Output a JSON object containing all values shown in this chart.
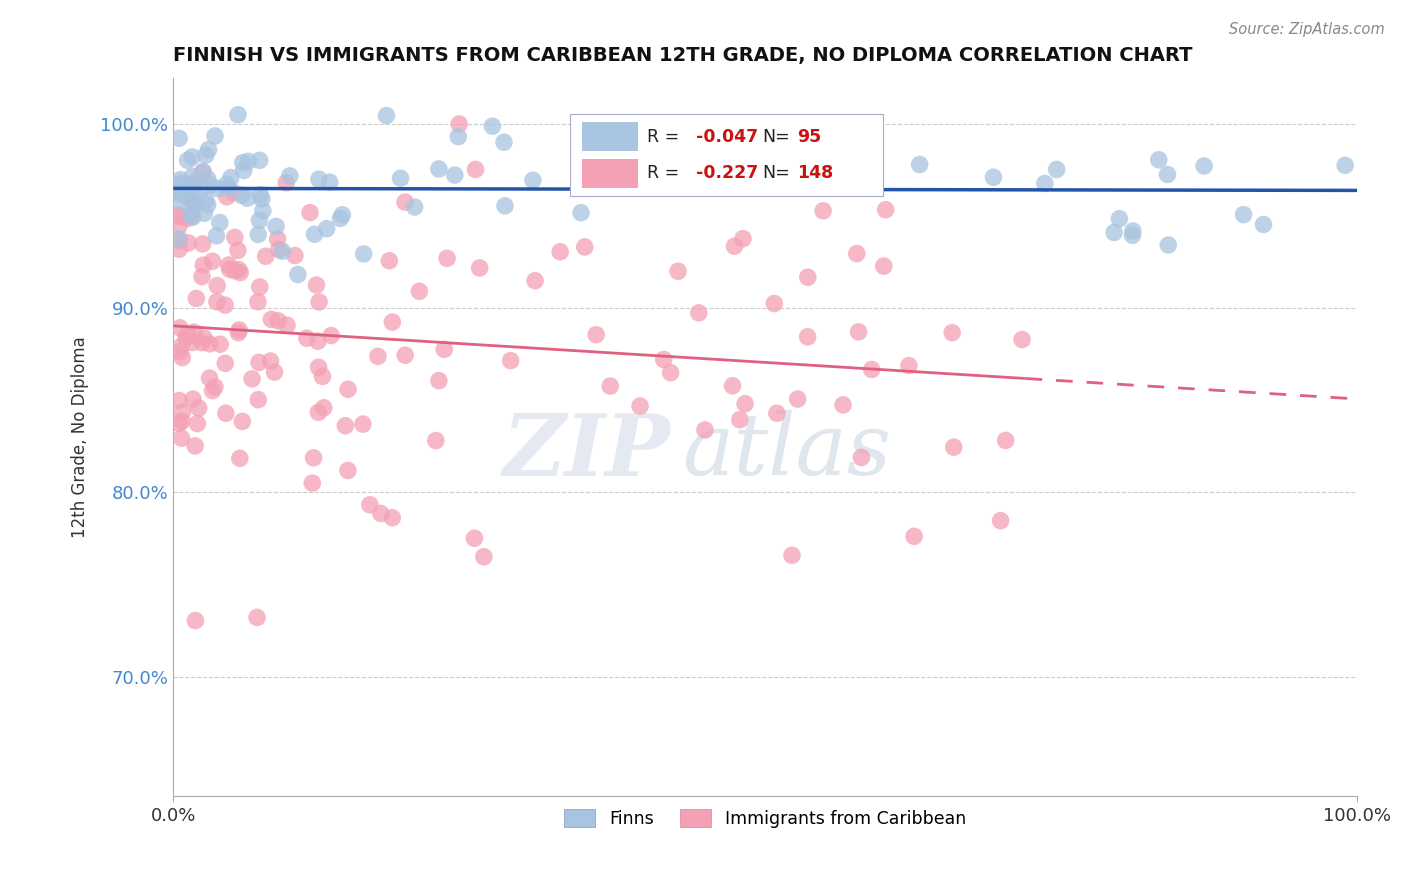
{
  "title": "FINNISH VS IMMIGRANTS FROM CARIBBEAN 12TH GRADE, NO DIPLOMA CORRELATION CHART",
  "source": "Source: ZipAtlas.com",
  "ylabel": "12th Grade, No Diploma",
  "xlim": [
    0.0,
    1.0
  ],
  "ylim": [
    0.635,
    1.025
  ],
  "x_tick_labels": [
    "0.0%",
    "100.0%"
  ],
  "y_ticks": [
    0.7,
    0.8,
    0.9,
    1.0
  ],
  "y_tick_labels": [
    "70.0%",
    "80.0%",
    "90.0%",
    "100.0%"
  ],
  "legend_r_finns": "-0.047",
  "legend_n_finns": "95",
  "legend_r_caribbean": "-0.227",
  "legend_n_caribbean": "148",
  "finns_color": "#a8c4e0",
  "caribbean_color": "#f4a0b5",
  "finns_line_color": "#2255aa",
  "caribbean_line_color": "#e06080",
  "watermark_zip": "ZIP",
  "watermark_atlas": "atlas",
  "finns_seed": 42,
  "caribbean_seed": 99
}
